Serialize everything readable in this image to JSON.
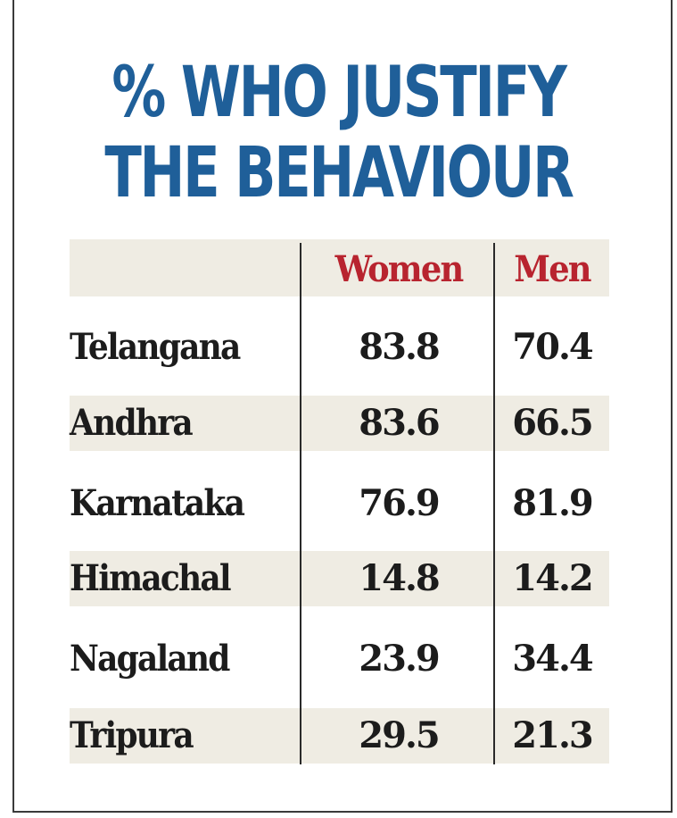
{
  "chart_data": {
    "type": "table",
    "title_lines": [
      "% WHO JUSTIFY",
      "THE BEHAVIOUR"
    ],
    "columns": [
      "",
      "Women",
      "Men"
    ],
    "rows": [
      {
        "state": "Telangana",
        "women": "83.8",
        "men": "70.4"
      },
      {
        "state": "Andhra",
        "women": "83.6",
        "men": "66.5"
      },
      {
        "state": "Karnataka",
        "women": "76.9",
        "men": "81.9"
      },
      {
        "state": "Himachal",
        "women": "14.8",
        "men": "14.2"
      },
      {
        "state": "Nagaland",
        "women": "23.9",
        "men": "34.4"
      },
      {
        "state": "Tripura",
        "women": "29.5",
        "men": "21.3"
      }
    ]
  },
  "colors": {
    "title": "#1f5f99",
    "column_header": "#b8242f",
    "band": "#efece3",
    "text": "#1c1c1c"
  }
}
